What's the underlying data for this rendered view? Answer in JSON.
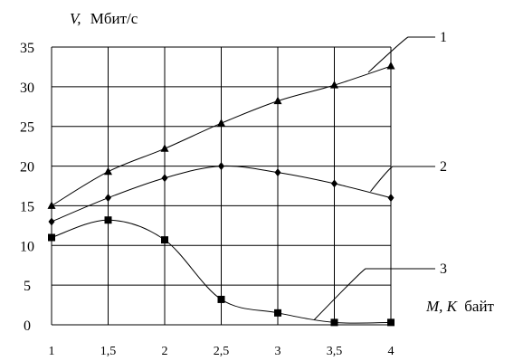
{
  "chart_data": {
    "type": "line",
    "x": [
      1,
      1.5,
      2,
      2.5,
      3,
      3.5,
      4
    ],
    "x_tick_labels": [
      "1",
      "1,5",
      "2",
      "2,5",
      "3",
      "3,5",
      "4"
    ],
    "y_ticks": [
      0,
      5,
      10,
      15,
      20,
      25,
      30,
      35
    ],
    "y_tick_labels": [
      "0",
      "5",
      "10",
      "15",
      "20",
      "25",
      "30",
      "35"
    ],
    "xlim": [
      1,
      4
    ],
    "ylim": [
      0,
      35
    ],
    "grid": true,
    "ylabel_var": "V,",
    "ylabel_unit": "Мбит/с",
    "xlabel_var": "M, K",
    "xlabel_unit": "байт",
    "series": [
      {
        "name": "1",
        "marker": "triangle",
        "values": [
          15,
          19.3,
          22.2,
          25.4,
          28.2,
          30.2,
          32.6
        ]
      },
      {
        "name": "2",
        "marker": "diamond",
        "values": [
          13,
          16,
          18.5,
          20,
          19.2,
          17.8,
          16
        ]
      },
      {
        "name": "3",
        "marker": "square",
        "values": [
          11,
          13.2,
          10.7,
          3.2,
          1.5,
          0.3,
          0.3
        ]
      }
    ]
  }
}
